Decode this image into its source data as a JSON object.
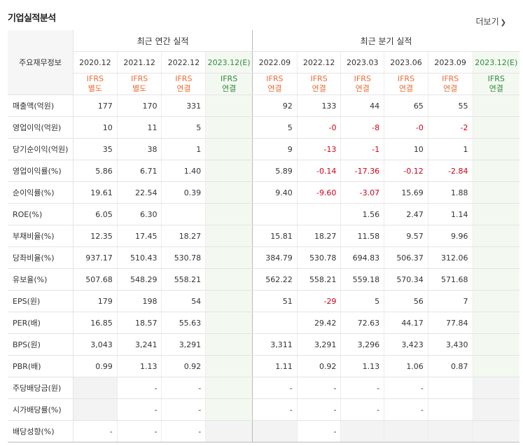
{
  "section": {
    "title": "기업실적분석",
    "more_label": "더보기"
  },
  "table": {
    "label_header": "주요재무정보",
    "group_annual": "최근 연간 실적",
    "group_quarterly": "최근 분기 실적",
    "columns": [
      {
        "date": "2020.12",
        "ifrs1": "IFRS",
        "ifrs2": "별도"
      },
      {
        "date": "2021.12",
        "ifrs1": "IFRS",
        "ifrs2": "별도"
      },
      {
        "date": "2022.12",
        "ifrs1": "IFRS",
        "ifrs2": "연결"
      },
      {
        "date": "2023.12(E)",
        "ifrs1": "IFRS",
        "ifrs2": "연결"
      },
      {
        "date": "2022.09",
        "ifrs1": "IFRS",
        "ifrs2": "연결"
      },
      {
        "date": "2022.12",
        "ifrs1": "IFRS",
        "ifrs2": "연결"
      },
      {
        "date": "2023.03",
        "ifrs1": "IFRS",
        "ifrs2": "연결"
      },
      {
        "date": "2023.06",
        "ifrs1": "IFRS",
        "ifrs2": "연결"
      },
      {
        "date": "2023.09",
        "ifrs1": "IFRS",
        "ifrs2": "연결"
      },
      {
        "date": "2023.12(E)",
        "ifrs1": "IFRS",
        "ifrs2": "연결"
      }
    ],
    "rows": [
      {
        "label": "매출액(억원)",
        "values": [
          "177",
          "170",
          "331",
          "",
          "92",
          "133",
          "44",
          "65",
          "55",
          ""
        ]
      },
      {
        "label": "영업이익(억원)",
        "values": [
          "10",
          "11",
          "5",
          "",
          "5",
          "-0",
          "-8",
          "-0",
          "-2",
          ""
        ]
      },
      {
        "label": "당기순이익(억원)",
        "values": [
          "35",
          "38",
          "1",
          "",
          "9",
          "-13",
          "-1",
          "10",
          "1",
          ""
        ]
      },
      {
        "label": "영업이익률(%)",
        "values": [
          "5.86",
          "6.71",
          "1.40",
          "",
          "5.89",
          "-0.14",
          "-17.36",
          "-0.12",
          "-2.84",
          ""
        ]
      },
      {
        "label": "순이익률(%)",
        "values": [
          "19.61",
          "22.54",
          "0.39",
          "",
          "9.40",
          "-9.60",
          "-3.07",
          "15.69",
          "1.88",
          ""
        ]
      },
      {
        "label": "ROE(%)",
        "values": [
          "6.05",
          "6.30",
          "",
          "",
          "",
          "",
          "1.56",
          "2.47",
          "1.14",
          ""
        ]
      },
      {
        "label": "부채비율(%)",
        "values": [
          "12.35",
          "17.45",
          "18.27",
          "",
          "15.81",
          "18.27",
          "11.58",
          "9.57",
          "9.96",
          ""
        ]
      },
      {
        "label": "당좌비율(%)",
        "values": [
          "937.17",
          "510.43",
          "530.78",
          "",
          "384.79",
          "530.78",
          "694.83",
          "506.37",
          "312.06",
          ""
        ]
      },
      {
        "label": "유보율(%)",
        "values": [
          "507.68",
          "548.29",
          "558.21",
          "",
          "562.22",
          "558.21",
          "559.18",
          "570.34",
          "571.68",
          ""
        ]
      },
      {
        "label": "EPS(원)",
        "values": [
          "179",
          "198",
          "54",
          "",
          "51",
          "-29",
          "5",
          "56",
          "7",
          ""
        ]
      },
      {
        "label": "PER(배)",
        "values": [
          "16.85",
          "18.57",
          "55.63",
          "",
          "",
          "29.42",
          "72.63",
          "44.17",
          "77.84",
          ""
        ]
      },
      {
        "label": "BPS(원)",
        "values": [
          "3,043",
          "3,241",
          "3,291",
          "",
          "3,311",
          "3,291",
          "3,296",
          "3,423",
          "3,430",
          ""
        ]
      },
      {
        "label": "PBR(배)",
        "values": [
          "0.99",
          "1.13",
          "0.92",
          "",
          "1.11",
          "0.92",
          "1.13",
          "1.06",
          "0.87",
          ""
        ]
      },
      {
        "label": "주당배당금(원)",
        "values": [
          "",
          "-",
          "-",
          "",
          "-",
          "-",
          "-",
          "-",
          "",
          ""
        ]
      },
      {
        "label": "시가배당률(%)",
        "values": [
          "",
          "-",
          "-",
          "",
          "-",
          "-",
          "-",
          "-",
          "",
          ""
        ]
      },
      {
        "label": "배당성향(%)",
        "values": [
          "-",
          "-",
          "-",
          "",
          "",
          "-",
          "",
          "",
          "",
          ""
        ]
      }
    ]
  },
  "colors": {
    "ifrs": "#e96d35",
    "estimate": "#2d8b3c",
    "negative": "#d0021b"
  }
}
